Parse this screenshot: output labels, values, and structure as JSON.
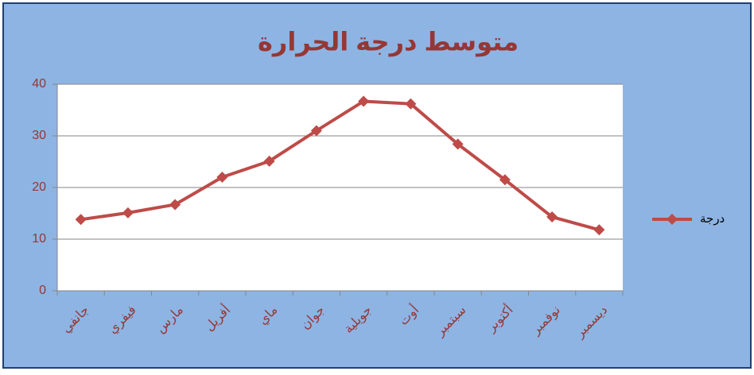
{
  "chart_data": {
    "type": "line",
    "title": "متوسط درجة الحرارة",
    "categories": [
      "جانفي",
      "فيفري",
      "مارس",
      "أفريل",
      "ماي",
      "جوان",
      "جويلية",
      "أوت",
      "سبتمبر",
      "أكتوبر",
      "نوفمبر",
      "ديسمبر"
    ],
    "series": [
      {
        "name": "درجة",
        "color": "#be4b48",
        "values": [
          13.8,
          15.1,
          16.7,
          22,
          25.1,
          31,
          36.7,
          36.2,
          28.4,
          21.5,
          14.3,
          11.8
        ]
      }
    ],
    "ylim": [
      0,
      40
    ],
    "yticks": [
      0,
      10,
      20,
      30,
      40
    ],
    "grid": true,
    "legend": "right"
  }
}
